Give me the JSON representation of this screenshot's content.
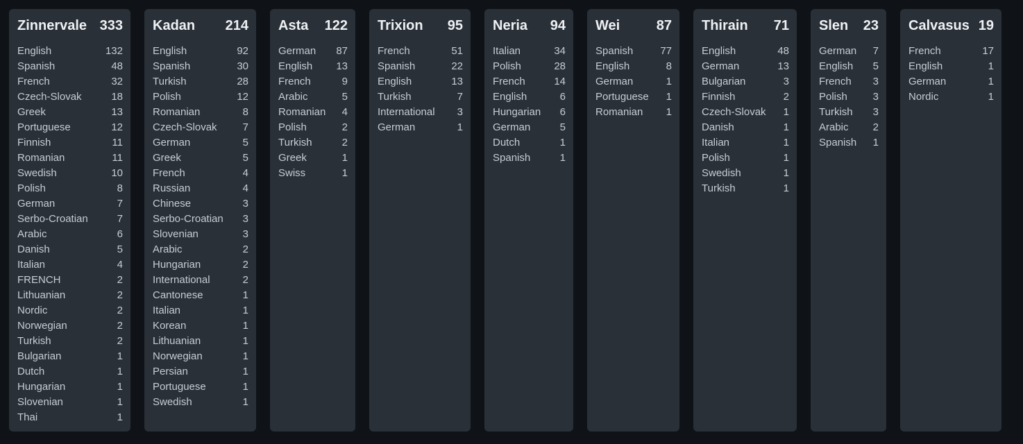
{
  "columns": [
    {
      "name": "Zinnervale",
      "total": "333",
      "rows": [
        {
          "label": "English",
          "value": "132"
        },
        {
          "label": "Spanish",
          "value": "48"
        },
        {
          "label": "French",
          "value": "32"
        },
        {
          "label": "Czech-Slovak",
          "value": "18"
        },
        {
          "label": "Greek",
          "value": "13"
        },
        {
          "label": "Portuguese",
          "value": "12"
        },
        {
          "label": "Finnish",
          "value": "11"
        },
        {
          "label": "Romanian",
          "value": "11"
        },
        {
          "label": "Swedish",
          "value": "10"
        },
        {
          "label": "Polish",
          "value": "8"
        },
        {
          "label": "German",
          "value": "7"
        },
        {
          "label": "Serbo-Croatian",
          "value": "7"
        },
        {
          "label": "Arabic",
          "value": "6"
        },
        {
          "label": "Danish",
          "value": "5"
        },
        {
          "label": "Italian",
          "value": "4"
        },
        {
          "label": "FRENCH",
          "value": "2"
        },
        {
          "label": "Lithuanian",
          "value": "2"
        },
        {
          "label": "Nordic",
          "value": "2"
        },
        {
          "label": "Norwegian",
          "value": "2"
        },
        {
          "label": "Turkish",
          "value": "2"
        },
        {
          "label": "Bulgarian",
          "value": "1"
        },
        {
          "label": "Dutch",
          "value": "1"
        },
        {
          "label": "Hungarian",
          "value": "1"
        },
        {
          "label": "Slovenian",
          "value": "1"
        },
        {
          "label": "Thai",
          "value": "1"
        }
      ]
    },
    {
      "name": "Kadan",
      "total": "214",
      "rows": [
        {
          "label": "English",
          "value": "92"
        },
        {
          "label": "Spanish",
          "value": "30"
        },
        {
          "label": "Turkish",
          "value": "28"
        },
        {
          "label": "Polish",
          "value": "12"
        },
        {
          "label": "Romanian",
          "value": "8"
        },
        {
          "label": "Czech-Slovak",
          "value": "7"
        },
        {
          "label": "German",
          "value": "5"
        },
        {
          "label": "Greek",
          "value": "5"
        },
        {
          "label": "French",
          "value": "4"
        },
        {
          "label": "Russian",
          "value": "4"
        },
        {
          "label": "Chinese",
          "value": "3"
        },
        {
          "label": "Serbo-Croatian",
          "value": "3"
        },
        {
          "label": "Slovenian",
          "value": "3"
        },
        {
          "label": "Arabic",
          "value": "2"
        },
        {
          "label": "Hungarian",
          "value": "2"
        },
        {
          "label": "International",
          "value": "2"
        },
        {
          "label": "Cantonese",
          "value": "1"
        },
        {
          "label": "Italian",
          "value": "1"
        },
        {
          "label": "Korean",
          "value": "1"
        },
        {
          "label": "Lithuanian",
          "value": "1"
        },
        {
          "label": "Norwegian",
          "value": "1"
        },
        {
          "label": "Persian",
          "value": "1"
        },
        {
          "label": "Portuguese",
          "value": "1"
        },
        {
          "label": "Swedish",
          "value": "1"
        }
      ]
    },
    {
      "name": "Asta",
      "total": "122",
      "rows": [
        {
          "label": "German",
          "value": "87"
        },
        {
          "label": "English",
          "value": "13"
        },
        {
          "label": "French",
          "value": "9"
        },
        {
          "label": "Arabic",
          "value": "5"
        },
        {
          "label": "Romanian",
          "value": "4"
        },
        {
          "label": "Polish",
          "value": "2"
        },
        {
          "label": "Turkish",
          "value": "2"
        },
        {
          "label": "Greek",
          "value": "1"
        },
        {
          "label": "Swiss",
          "value": "1"
        }
      ]
    },
    {
      "name": "Trixion",
      "total": "95",
      "rows": [
        {
          "label": "French",
          "value": "51"
        },
        {
          "label": "Spanish",
          "value": "22"
        },
        {
          "label": "English",
          "value": "13"
        },
        {
          "label": "Turkish",
          "value": "7"
        },
        {
          "label": "International",
          "value": "3"
        },
        {
          "label": "German",
          "value": "1"
        }
      ]
    },
    {
      "name": "Neria",
      "total": "94",
      "rows": [
        {
          "label": "Italian",
          "value": "34"
        },
        {
          "label": "Polish",
          "value": "28"
        },
        {
          "label": "French",
          "value": "14"
        },
        {
          "label": "English",
          "value": "6"
        },
        {
          "label": "Hungarian",
          "value": "6"
        },
        {
          "label": "German",
          "value": "5"
        },
        {
          "label": "Dutch",
          "value": "1"
        },
        {
          "label": "Spanish",
          "value": "1"
        }
      ]
    },
    {
      "name": "Wei",
      "total": "87",
      "rows": [
        {
          "label": "Spanish",
          "value": "77"
        },
        {
          "label": "English",
          "value": "8"
        },
        {
          "label": "German",
          "value": "1"
        },
        {
          "label": "Portuguese",
          "value": "1"
        },
        {
          "label": "Romanian",
          "value": "1"
        }
      ]
    },
    {
      "name": "Thirain",
      "total": "71",
      "rows": [
        {
          "label": "English",
          "value": "48"
        },
        {
          "label": "German",
          "value": "13"
        },
        {
          "label": "Bulgarian",
          "value": "3"
        },
        {
          "label": "Finnish",
          "value": "2"
        },
        {
          "label": "Czech-Slovak",
          "value": "1"
        },
        {
          "label": "Danish",
          "value": "1"
        },
        {
          "label": "Italian",
          "value": "1"
        },
        {
          "label": "Polish",
          "value": "1"
        },
        {
          "label": "Swedish",
          "value": "1"
        },
        {
          "label": "Turkish",
          "value": "1"
        }
      ]
    },
    {
      "name": "Slen",
      "total": "23",
      "rows": [
        {
          "label": "German",
          "value": "7"
        },
        {
          "label": "English",
          "value": "5"
        },
        {
          "label": "French",
          "value": "3"
        },
        {
          "label": "Polish",
          "value": "3"
        },
        {
          "label": "Turkish",
          "value": "3"
        },
        {
          "label": "Arabic",
          "value": "2"
        },
        {
          "label": "Spanish",
          "value": "1"
        }
      ]
    },
    {
      "name": "Calvasus",
      "total": "19",
      "rows": [
        {
          "label": "French",
          "value": "17"
        },
        {
          "label": "English",
          "value": "1"
        },
        {
          "label": "German",
          "value": "1"
        },
        {
          "label": "Nordic",
          "value": "1"
        }
      ]
    }
  ],
  "colors": {
    "page_background": "#0f1318",
    "card_background": "#2a3038",
    "header_text": "#eef1f4",
    "row_text": "#c7cdd3"
  }
}
